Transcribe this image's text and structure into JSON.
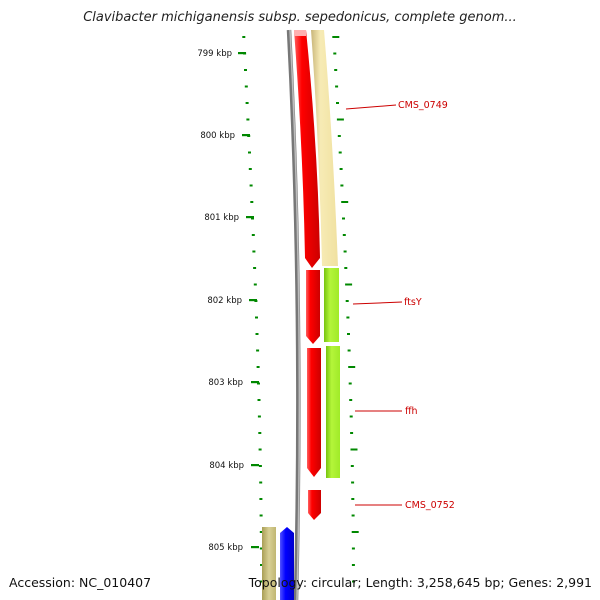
{
  "title": "Clavibacter michiganensis subsp. sepedonicus, complete genom...",
  "accession": "Accession: NC_010407",
  "topology": "Topology: circular; Length: 3,258,645 bp; Genes: 2,991",
  "scale_labels": [
    "799 kbp",
    "800 kbp",
    "801 kbp",
    "802 kbp",
    "803 kbp",
    "804 kbp",
    "805 kbp"
  ],
  "gene_labels": [
    "CMS_0749",
    "ftsY",
    "ffh",
    "CMS_0752"
  ],
  "colors": {
    "forward_strand": "#ff0000",
    "cds_tan": "#f2e2a0",
    "cds_green": "#a6ee2a",
    "cds_olive": "#c8bf7a",
    "cds_blue": "#0000ff",
    "backbone": "#808080",
    "tick": "#008800",
    "label": "#cc0000"
  }
}
